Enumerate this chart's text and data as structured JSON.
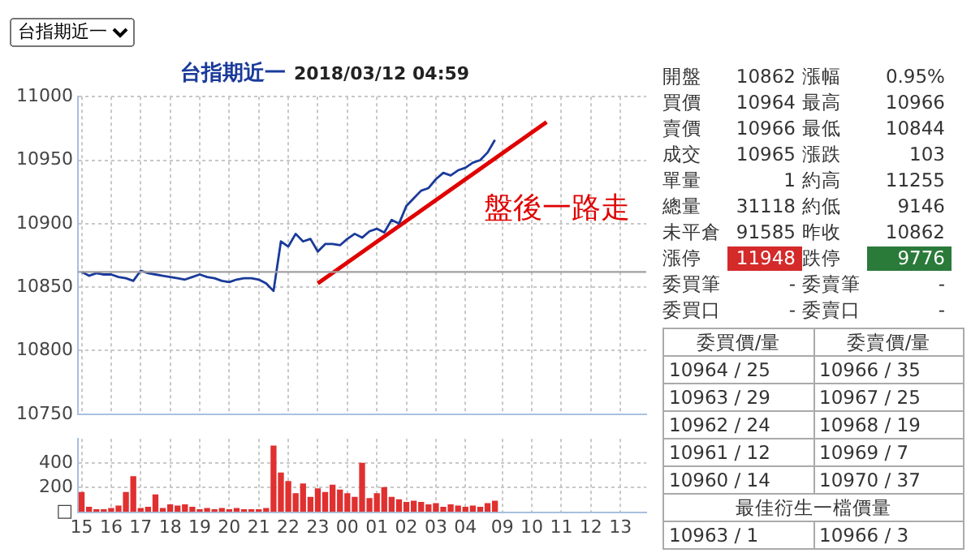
{
  "chart_data": [
    {
      "type": "line",
      "title": "台指期近一",
      "subtitle": "2018/03/12 04:59",
      "annotations": [
        "台指期近一",
        "盤後一路走"
      ],
      "categories": [
        "15",
        null,
        null,
        null,
        "16",
        null,
        null,
        null,
        "17",
        null,
        null,
        null,
        "18",
        null,
        null,
        null,
        "19",
        null,
        null,
        null,
        "20",
        null,
        null,
        null,
        "21",
        null,
        null,
        null,
        "22",
        null,
        null,
        null,
        "23",
        null,
        null,
        null,
        "00",
        null,
        null,
        null,
        "01",
        null,
        null,
        null,
        "02",
        null,
        null,
        null,
        "03",
        null,
        null,
        null,
        "04",
        null,
        null,
        null,
        null,
        "09",
        null,
        null,
        null,
        "10",
        null,
        null,
        null,
        "11",
        null,
        null,
        null,
        "12",
        null,
        null,
        null,
        "13",
        null,
        null,
        null
      ],
      "ylim": [
        10750,
        11000
      ],
      "yticks": [
        10750,
        10800,
        10850,
        10900,
        10950,
        11000
      ],
      "grid": true,
      "tick_labels": "y",
      "ref_lines": [
        {
          "axis": "y",
          "value": 10862,
          "color": "#a0a0a0"
        }
      ],
      "series": [
        {
          "color": "#1a3a9a",
          "values": [
            10862,
            10859,
            10861,
            10860,
            10860,
            10858,
            10857,
            10855,
            10863,
            10861,
            10860,
            10859,
            10858,
            10857,
            10856,
            10858,
            10860,
            10858,
            10857,
            10855,
            10854,
            10856,
            10857,
            10857,
            10856,
            10853,
            10847,
            10886,
            10882,
            10892,
            10886,
            10888,
            10878,
            10884,
            10884,
            10883,
            10888,
            10892,
            10889,
            10894,
            10896,
            10893,
            10903,
            10900,
            10914,
            10920,
            10926,
            10928,
            10935,
            10940,
            10938,
            10942,
            10944,
            10948,
            10950,
            10956,
            10966,
            null,
            null,
            null,
            null,
            null,
            null,
            null,
            null,
            null,
            null,
            null,
            null,
            null,
            null,
            null,
            null,
            null,
            null,
            null,
            null
          ]
        },
        {
          "type": "line",
          "color": "#e00000",
          "values": [
            null,
            null,
            null,
            null,
            null,
            null,
            null,
            null,
            null,
            null,
            null,
            null,
            null,
            null,
            null,
            null,
            null,
            null,
            null,
            null,
            null,
            null,
            null,
            null,
            null,
            null,
            null,
            null,
            null,
            null,
            null,
            null,
            10853,
            null,
            null,
            null,
            null,
            null,
            null,
            null,
            null,
            null,
            null,
            null,
            null,
            null,
            null,
            null,
            null,
            null,
            null,
            null,
            null,
            null,
            null,
            null,
            null,
            null,
            null,
            null,
            null,
            null,
            null,
            10980,
            null,
            null,
            null,
            null,
            null,
            null,
            null,
            null,
            null,
            null,
            null,
            null,
            null
          ]
        }
      ]
    },
    {
      "type": "bar",
      "color": "#e03030",
      "categories": [
        "15",
        null,
        null,
        null,
        "16",
        null,
        null,
        null,
        "17",
        null,
        null,
        null,
        "18",
        null,
        null,
        null,
        "19",
        null,
        null,
        null,
        "20",
        null,
        null,
        null,
        "21",
        null,
        null,
        null,
        "22",
        null,
        null,
        null,
        "23",
        null,
        null,
        null,
        "00",
        null,
        null,
        null,
        "01",
        null,
        null,
        null,
        "02",
        null,
        null,
        null,
        "03",
        null,
        null,
        null,
        "04",
        null,
        null,
        null,
        null,
        "09",
        null,
        null,
        null,
        "10",
        null,
        null,
        null,
        "11",
        null,
        null,
        null,
        "12",
        null,
        null,
        null,
        "13",
        null,
        null,
        null
      ],
      "ylim": [
        0,
        600
      ],
      "yticks": [
        {
          "value": 0,
          "label": "□"
        },
        200,
        400
      ],
      "grid": true,
      "values": [
        160,
        40,
        20,
        20,
        30,
        50,
        160,
        290,
        30,
        40,
        140,
        30,
        60,
        50,
        60,
        40,
        20,
        30,
        20,
        30,
        20,
        30,
        20,
        20,
        20,
        30,
        540,
        320,
        250,
        150,
        230,
        120,
        190,
        160,
        220,
        180,
        150,
        120,
        400,
        110,
        150,
        200,
        120,
        100,
        80,
        90,
        80,
        60,
        70,
        40,
        60,
        50,
        40,
        50,
        40,
        70,
        90,
        null,
        null,
        null,
        null,
        null,
        null,
        null,
        null,
        null,
        null,
        null,
        null,
        null,
        null,
        null,
        null,
        null,
        null,
        null,
        null
      ]
    },
    {
      "type": "other",
      "annotations": [
        "開盤",
        "10862",
        "漲幅",
        "0.95%",
        "買價",
        "10964",
        "最高",
        "10966",
        "賣價",
        "10966",
        "最低",
        "10844",
        "成交",
        "10965",
        "漲跌",
        "103",
        "單量",
        "1",
        "約高",
        "11255",
        "總量",
        "31118",
        "約低",
        "9146",
        "未平倉",
        "91585",
        "昨收",
        "10862",
        "漲停",
        "11948",
        "跌停",
        "9776",
        "委買筆",
        "-",
        "委賣筆",
        "-",
        "委買口",
        "-",
        "委賣口",
        "-",
        "委買價/量",
        "委賣價/量",
        "10964 / 25",
        "10966 / 35",
        "10963 / 29",
        "10967 / 25",
        "10962 / 24",
        "10968 / 19",
        "10961 / 12",
        "10969 / 7",
        "10960 / 14",
        "10970 / 37",
        "最佳衍生一檔價量",
        "10963 / 1",
        "10966 / 3"
      ]
    }
  ]
}
